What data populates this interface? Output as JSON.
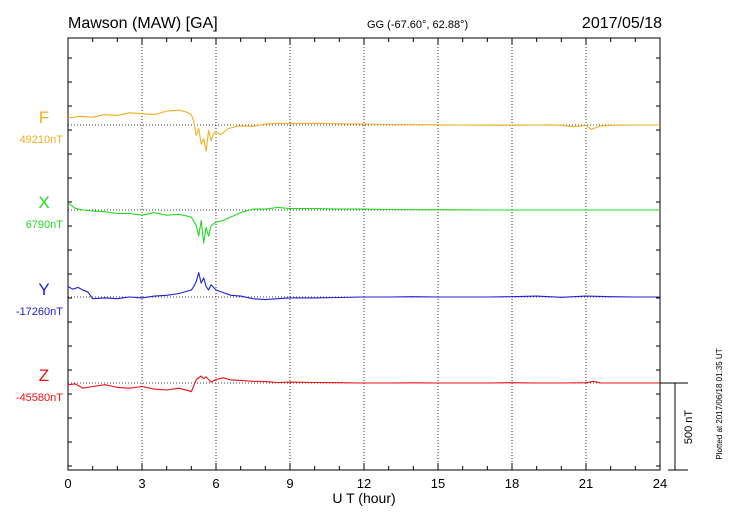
{
  "header": {
    "station": "Mawson (MAW)  [GA]",
    "coords": "GG (-67.60°,  62.88°)",
    "date": "2017/05/18"
  },
  "footer": {
    "plotted": "Plotted at 2017/06/18 01:35 UT"
  },
  "chart_data": {
    "type": "line",
    "xlabel": "U T (hour)",
    "xlim": [
      0,
      24
    ],
    "xticks": [
      "0",
      "3",
      "6",
      "9",
      "12",
      "15",
      "18",
      "21",
      "24"
    ],
    "scale_bar": {
      "label": "500 nT",
      "value_nT": 500
    },
    "grid": true,
    "series": [
      {
        "name": "F",
        "baseline": "49210nT",
        "color": "#f0b020",
        "x": [
          0,
          0.5,
          1,
          1.5,
          2,
          2.5,
          3,
          3.5,
          4,
          4.5,
          4.8,
          5,
          5.1,
          5.2,
          5.3,
          5.4,
          5.5,
          5.6,
          5.7,
          5.8,
          5.9,
          6,
          6.2,
          6.5,
          6.8,
          7,
          7.5,
          8,
          8.5,
          9,
          10,
          11,
          12,
          13,
          14,
          15,
          16,
          17,
          18,
          19,
          19.5,
          20,
          20.5,
          21,
          21.2,
          21.4,
          21.6,
          22,
          23,
          24
        ],
        "y": [
          40,
          50,
          45,
          60,
          55,
          70,
          65,
          60,
          80,
          85,
          75,
          60,
          20,
          -60,
          -20,
          -110,
          -80,
          -150,
          -30,
          -90,
          -50,
          -40,
          -55,
          -20,
          -10,
          -5,
          -8,
          5,
          10,
          8,
          10,
          7,
          5,
          3,
          2,
          1,
          0,
          -1,
          -2,
          0,
          1,
          -2,
          -10,
          -3,
          -25,
          -15,
          -5,
          -2,
          0,
          0
        ]
      },
      {
        "name": "X",
        "baseline": "6790nT",
        "color": "#20dd20",
        "x": [
          0,
          0.3,
          0.6,
          1,
          1.5,
          2,
          2.5,
          3,
          3.5,
          4,
          4.5,
          5,
          5.2,
          5.3,
          5.4,
          5.5,
          5.6,
          5.7,
          5.8,
          6,
          6.3,
          6.6,
          7,
          7.5,
          8,
          8.5,
          9,
          10,
          11,
          12,
          13,
          14,
          15,
          16,
          17,
          18,
          19,
          20,
          21,
          22,
          23,
          24
        ],
        "y": [
          40,
          10,
          0,
          -5,
          -10,
          -20,
          -20,
          -30,
          -15,
          -30,
          -25,
          -40,
          -90,
          -150,
          -60,
          -190,
          -100,
          -150,
          -90,
          -70,
          -60,
          -40,
          -15,
          5,
          5,
          15,
          8,
          8,
          5,
          5,
          3,
          2,
          2,
          1,
          0,
          0,
          0,
          0,
          0,
          0,
          0,
          0
        ]
      },
      {
        "name": "Y",
        "baseline": "-17260nT",
        "color": "#2020dd",
        "x": [
          0,
          0.2,
          0.4,
          0.6,
          0.8,
          1,
          1.5,
          2,
          2.5,
          3,
          3.5,
          4,
          4.5,
          5,
          5.1,
          5.2,
          5.3,
          5.4,
          5.5,
          5.6,
          5.7,
          5.8,
          6,
          6.3,
          6.6,
          7,
          7.5,
          8,
          8.5,
          9,
          10,
          11,
          12,
          13,
          14,
          15,
          16,
          17,
          18,
          19,
          20,
          21,
          22,
          23,
          24
        ],
        "y": [
          60,
          45,
          55,
          40,
          30,
          -10,
          -5,
          -10,
          0,
          -5,
          5,
          10,
          20,
          40,
          60,
          90,
          140,
          80,
          110,
          60,
          40,
          70,
          40,
          25,
          10,
          5,
          -10,
          -15,
          -10,
          -5,
          -5,
          -3,
          0,
          0,
          2,
          0,
          0,
          0,
          2,
          5,
          -2,
          5,
          2,
          0,
          0
        ]
      },
      {
        "name": "Z",
        "baseline": "-45580nT",
        "color": "#ee1010",
        "x": [
          0,
          0.3,
          0.6,
          1,
          1.5,
          2,
          2.5,
          3,
          3.5,
          4,
          4.5,
          4.9,
          5,
          5.2,
          5.4,
          5.5,
          5.6,
          5.8,
          6,
          6.3,
          6.6,
          7,
          7.5,
          8,
          8.5,
          9,
          10,
          11,
          12,
          13,
          14,
          15,
          16,
          17,
          18,
          19,
          20,
          21,
          21.3,
          21.6,
          22,
          23,
          24
        ],
        "y": [
          -10,
          -5,
          -30,
          -20,
          -10,
          -25,
          -30,
          -20,
          -35,
          -40,
          -30,
          -45,
          -50,
          20,
          40,
          25,
          35,
          5,
          20,
          30,
          18,
          15,
          10,
          8,
          3,
          5,
          3,
          2,
          0,
          0,
          1,
          0,
          0,
          0,
          2,
          0,
          0,
          2,
          10,
          0,
          0,
          0,
          0
        ]
      }
    ]
  }
}
